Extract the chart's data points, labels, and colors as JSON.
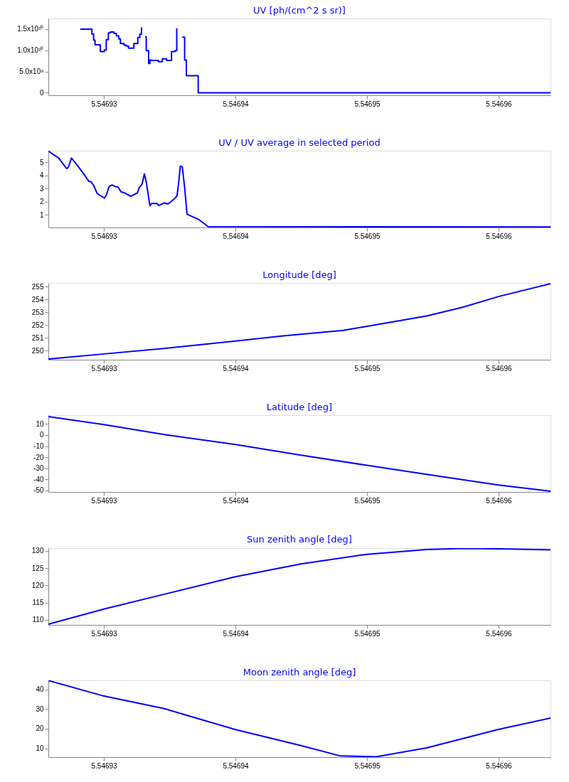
{
  "chart_data": [
    {
      "type": "step",
      "title": "UV [ph/(cm^2 s sr)]",
      "xlim": [
        5.54692578,
        5.54696395
      ],
      "xticks": [
        5.54693,
        5.54694,
        5.54695,
        5.54696
      ],
      "ylim": [
        -600000000.0,
        17500000000.0
      ],
      "yticks": [
        0,
        {
          "value": 5000000000.0,
          "label": "5.0x10⁹"
        },
        {
          "value": 10000000000.0,
          "label": "1.0x10¹⁰"
        },
        {
          "value": 15000000000.0,
          "label": "1.5x10¹⁰"
        }
      ],
      "x": [
        5.54692821,
        5.54692909,
        5.54692922,
        5.54692933,
        5.54692973,
        5.54693004,
        5.54693018,
        5.54693034,
        5.54693049,
        5.54693076,
        5.54693095,
        5.54693113,
        5.54693126,
        5.54693153,
        5.54693169,
        5.54693187,
        5.54693209,
        5.54693228,
        5.54693258,
        5.54693273,
        5.54693286,
        5.54693299,
        5.54693313,
        5.54693322,
        5.5469334,
        5.5469335,
        5.54693359,
        5.54693414,
        5.54693444,
        5.54693477,
        5.54693514,
        5.54693541,
        5.54693554,
        5.54693568,
        5.54693596,
        5.54693614,
        5.54693627,
        5.54693717,
        5.54696395
      ],
      "series": [
        {
          "color": "#0000ff",
          "values": [
            15000000000.0,
            13800000000.0,
            12400000000.0,
            11300000000.0,
            9700000000.0,
            10100000000.0,
            12500000000.0,
            14100000000.0,
            14300000000.0,
            14000000000.0,
            13400000000.0,
            12700000000.0,
            11600000000.0,
            11200000000.0,
            11000000000.0,
            10500000000.0,
            10500000000.0,
            11600000000.0,
            13000000000.0,
            13800000000.0,
            15400000000.0,
            null,
            13200000000.0,
            9900000000.0,
            6900000000.0,
            7700000000.0,
            7600000000.0,
            7300000000.0,
            8000000000.0,
            7600000000.0,
            9700000000.0,
            9900000000.0,
            15200000000.0,
            null,
            13100000000.0,
            7700000000.0,
            4000000000.0,
            0,
            0
          ]
        }
      ]
    },
    {
      "type": "line",
      "title": "UV / UV average in selected period",
      "xlim": [
        5.54692578,
        5.54696395
      ],
      "xticks": [
        5.54693,
        5.54694,
        5.54695,
        5.54696
      ],
      "ylim": [
        0.03,
        5.88
      ],
      "yticks": [
        1,
        2,
        3,
        4,
        5
      ],
      "x": [
        5.54692578,
        5.54692657,
        5.54692718,
        5.54692731,
        5.54692754,
        5.54692794,
        5.5469284,
        5.54692885,
        5.54692903,
        5.54692922,
        5.54692949,
        5.54692977,
        5.54693004,
        5.54693016,
        5.5469304,
        5.54693062,
        5.54693086,
        5.54693108,
        5.54693131,
        5.54693158,
        5.54693204,
        5.54693255,
        5.54693268,
        5.5469329,
        5.54693308,
        5.54693322,
        5.5469335,
        5.54693362,
        5.54693404,
        5.54693417,
        5.54693459,
        5.54693486,
        5.54693532,
        5.54693556,
        5.54693568,
        5.54693581,
        5.54693596,
        5.54693614,
        5.54693632,
        5.54693723,
        5.54693792,
        5.54696395
      ],
      "series": [
        {
          "color": "#0000ff",
          "values": [
            5.85,
            5.32,
            4.51,
            4.65,
            5.32,
            4.82,
            4.21,
            3.56,
            3.5,
            3.24,
            2.62,
            2.44,
            2.27,
            2.44,
            3.15,
            3.27,
            3.15,
            3.11,
            2.74,
            2.67,
            2.41,
            2.67,
            3.06,
            3.33,
            4.12,
            3.5,
            1.69,
            1.86,
            1.86,
            1.7,
            1.91,
            1.82,
            2.18,
            2.44,
            3.41,
            4.7,
            4.65,
            3.06,
            1.04,
            0.63,
            0.1,
            0.07
          ]
        }
      ]
    },
    {
      "type": "line",
      "title": "Longitude [deg]",
      "xlim": [
        5.54692578,
        5.54696395
      ],
      "xticks": [
        5.54693,
        5.54694,
        5.54695,
        5.54696
      ],
      "ylim": [
        249.3,
        255.28
      ],
      "yticks": [
        250,
        251,
        252,
        253,
        254,
        255
      ],
      "x": [
        5.54692578,
        5.54693,
        5.54693454,
        5.54694,
        5.54694361,
        5.54694819,
        5.54695,
        5.54695453,
        5.54695726,
        5.54696,
        5.54696395
      ],
      "series": [
        {
          "color": "#0000ff",
          "values": [
            249.35,
            249.75,
            250.17,
            250.75,
            251.15,
            251.59,
            251.9,
            252.71,
            253.38,
            254.22,
            255.22
          ]
        }
      ]
    },
    {
      "type": "line",
      "title": "Latitude [deg]",
      "xlim": [
        5.54692578,
        5.54696395
      ],
      "xticks": [
        5.54693,
        5.54694,
        5.54695,
        5.54696
      ],
      "ylim": [
        -51.3,
        17.9
      ],
      "yticks": [
        -50,
        -40,
        -30,
        -20,
        -10,
        0,
        10
      ],
      "x": [
        5.54692578,
        5.54693,
        5.54693459,
        5.54694,
        5.54694498,
        5.54695,
        5.54695453,
        5.54696,
        5.54696395
      ],
      "series": [
        {
          "color": "#0000ff",
          "values": [
            16.6,
            9.4,
            0.5,
            -8.6,
            -18.1,
            -27.3,
            -35.5,
            -45,
            -50.6
          ]
        }
      ]
    },
    {
      "type": "line",
      "title": "Sun zenith angle [deg]",
      "xlim": [
        5.54692578,
        5.54696395
      ],
      "xticks": [
        5.54693,
        5.54694,
        5.54695,
        5.54696
      ],
      "ylim": [
        108.5,
        130.8
      ],
      "yticks": [
        110,
        115,
        120,
        125,
        130
      ],
      "x": [
        5.54692578,
        5.54693,
        5.54693459,
        5.54694,
        5.54694498,
        5.54695,
        5.54695453,
        5.54695726,
        5.54696,
        5.54696395
      ],
      "series": [
        {
          "color": "#0000ff",
          "values": [
            108.7,
            113.1,
            117.4,
            122.5,
            126.2,
            129.0,
            130.4,
            130.7,
            130.6,
            130.3
          ]
        }
      ]
    },
    {
      "type": "line",
      "title": "Moon zenith angle [deg]",
      "xlim": [
        5.54692578,
        5.54696395
      ],
      "xticks": [
        5.54693,
        5.54694,
        5.54695,
        5.54696
      ],
      "ylim": [
        5.5,
        44.6
      ],
      "yticks": [
        10,
        20,
        30,
        40
      ],
      "x": [
        5.54692578,
        5.54693,
        5.54693459,
        5.54694,
        5.54694498,
        5.54694798,
        5.54695071,
        5.54695453,
        5.54696,
        5.54696395
      ],
      "series": [
        {
          "color": "#0000ff",
          "values": [
            44.5,
            36.6,
            30.2,
            19.5,
            11.4,
            6.1,
            5.7,
            10.2,
            19.6,
            25.4
          ]
        }
      ]
    }
  ]
}
